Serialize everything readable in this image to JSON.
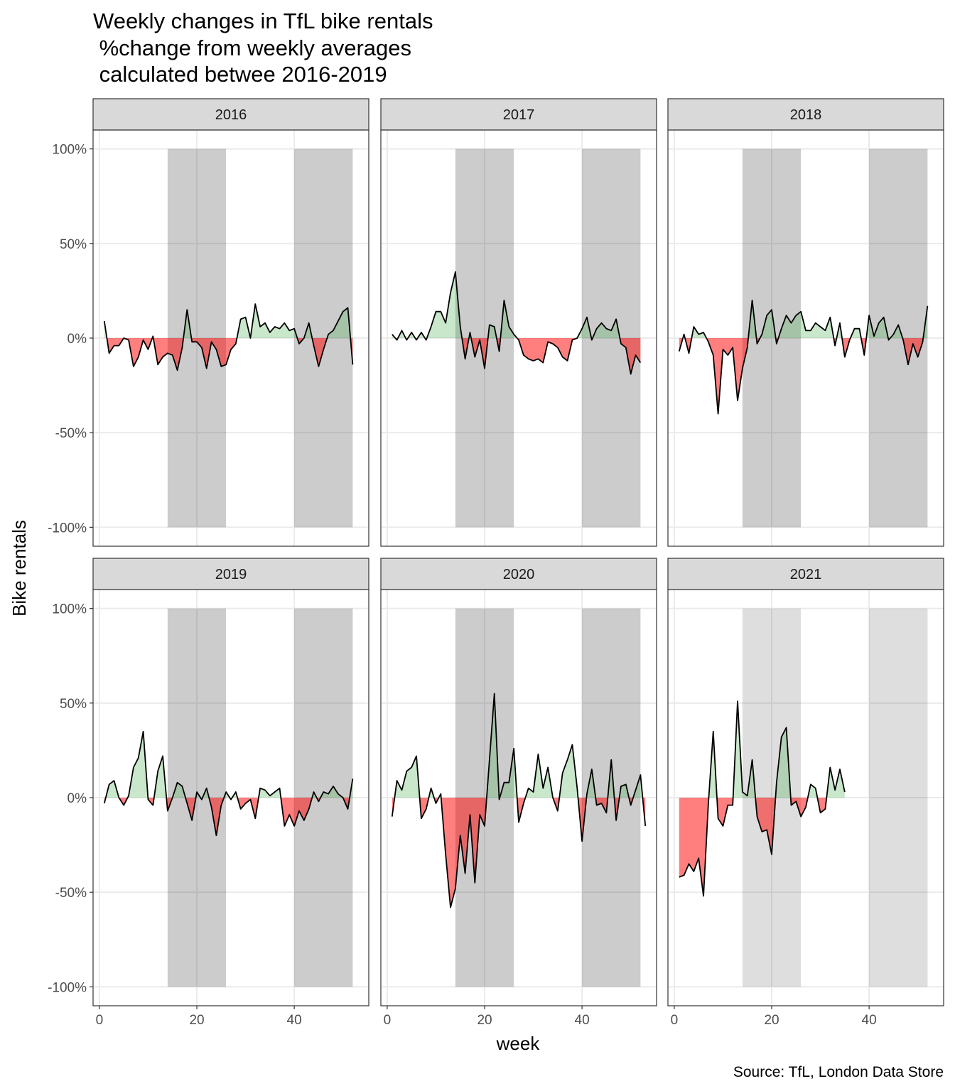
{
  "title_lines": [
    "Weekly changes in TfL bike rentals",
    " %change from weekly averages",
    " calculated betwee 2016-2019"
  ],
  "x_label": "week",
  "y_label": "Bike rentals",
  "caption": "Source: TfL, London Data Store",
  "chart_data": [
    {
      "type": "area",
      "strip": "2016",
      "x": [
        1,
        2,
        3,
        4,
        5,
        6,
        7,
        8,
        9,
        10,
        11,
        12,
        13,
        14,
        15,
        16,
        17,
        18,
        19,
        20,
        21,
        22,
        23,
        24,
        25,
        26,
        27,
        28,
        29,
        30,
        31,
        32,
        33,
        34,
        35,
        36,
        37,
        38,
        39,
        40,
        41,
        42,
        43,
        44,
        45,
        46,
        47,
        48,
        49,
        50,
        51,
        52
      ],
      "values": [
        9,
        -8,
        -4,
        -4,
        0,
        -1,
        -15,
        -10,
        -1,
        -6,
        1,
        -14,
        -10,
        -8,
        -9,
        -17,
        -5,
        15,
        -2,
        -2,
        -5,
        -16,
        -2,
        -6,
        -15,
        -14,
        -6,
        -3,
        10,
        11,
        0,
        18,
        6,
        8,
        3,
        6,
        5,
        8,
        4,
        5,
        -3,
        0,
        8,
        -4,
        -15,
        -6,
        2,
        4,
        9,
        14,
        16,
        -14
      ],
      "xlim": [
        -1.3,
        55.3
      ],
      "ylim": [
        -110,
        110
      ],
      "xticks": [
        0,
        20,
        40
      ],
      "yticks": [
        {
          "value": -100,
          "label": "-100%"
        },
        {
          "value": -50,
          "label": "-50%"
        },
        {
          "value": 0,
          "label": "0%"
        },
        {
          "value": 50,
          "label": "50%"
        },
        {
          "value": 100,
          "label": "100%"
        }
      ],
      "shaded_periods": [
        [
          14,
          26,
          -100,
          100
        ],
        [
          40,
          52,
          -100,
          100
        ]
      ],
      "shade_color": "rgba(0,0,0,0.2)",
      "positive_color": "rgba(76,175,80,0.3)",
      "negative_color": "rgba(255,0,0,0.5)",
      "line_color": "#000000",
      "grid": true
    },
    {
      "type": "area",
      "strip": "2017",
      "x": [
        1,
        2,
        3,
        4,
        5,
        6,
        7,
        8,
        9,
        10,
        11,
        12,
        13,
        14,
        15,
        16,
        17,
        18,
        19,
        20,
        21,
        22,
        23,
        24,
        25,
        26,
        27,
        28,
        29,
        30,
        31,
        32,
        33,
        34,
        35,
        36,
        37,
        38,
        39,
        40,
        41,
        42,
        43,
        44,
        45,
        46,
        47,
        48,
        49,
        50,
        51,
        52
      ],
      "values": [
        2,
        -1,
        4,
        -1,
        3,
        -1,
        3,
        -1,
        6,
        14,
        14,
        8,
        24,
        35,
        6,
        -11,
        3,
        -10,
        -1,
        -16,
        7,
        6,
        -7,
        20,
        6,
        2,
        -1,
        -9,
        -11,
        -12,
        -11,
        -13,
        -2,
        -3,
        -5,
        -10,
        -12,
        -1,
        0,
        5,
        11,
        -1,
        5,
        8,
        5,
        4,
        10,
        -3,
        -5,
        -19,
        -9,
        -13
      ],
      "xlim": [
        -1.3,
        55.3
      ],
      "ylim": [
        -110,
        110
      ],
      "xticks": [
        0,
        20,
        40
      ],
      "yticks": [
        {
          "value": -100,
          "label": "-100%"
        },
        {
          "value": -50,
          "label": "-50%"
        },
        {
          "value": 0,
          "label": "0%"
        },
        {
          "value": 50,
          "label": "50%"
        },
        {
          "value": 100,
          "label": "100%"
        }
      ],
      "shaded_periods": [
        [
          14,
          26,
          -100,
          100
        ],
        [
          40,
          52,
          -100,
          100
        ]
      ],
      "shade_color": "rgba(0,0,0,0.2)",
      "positive_color": "rgba(76,175,80,0.3)",
      "negative_color": "rgba(255,0,0,0.5)",
      "line_color": "#000000",
      "grid": true
    },
    {
      "type": "area",
      "strip": "2018",
      "x": [
        1,
        2,
        3,
        4,
        5,
        6,
        7,
        8,
        9,
        10,
        11,
        12,
        13,
        14,
        15,
        16,
        17,
        18,
        19,
        20,
        21,
        22,
        23,
        24,
        25,
        26,
        27,
        28,
        29,
        30,
        31,
        32,
        33,
        34,
        35,
        36,
        37,
        38,
        39,
        40,
        41,
        42,
        43,
        44,
        45,
        46,
        47,
        48,
        49,
        50,
        51,
        52
      ],
      "values": [
        -7,
        2,
        -8,
        6,
        2,
        3,
        -2,
        -9,
        -40,
        -6,
        -9,
        -5,
        -33,
        -16,
        -5,
        20,
        -3,
        2,
        12,
        15,
        -3,
        5,
        12,
        8,
        12,
        14,
        4,
        4,
        8,
        6,
        4,
        11,
        -4,
        8,
        -10,
        -1,
        5,
        5,
        -9,
        12,
        1,
        8,
        11,
        -1,
        2,
        7,
        -1,
        -14,
        -3,
        -10,
        -2,
        17
      ],
      "xlim": [
        -1.3,
        55.3
      ],
      "ylim": [
        -110,
        110
      ],
      "xticks": [
        0,
        20,
        40
      ],
      "yticks": [
        {
          "value": -100,
          "label": "-100%"
        },
        {
          "value": -50,
          "label": "-50%"
        },
        {
          "value": 0,
          "label": "0%"
        },
        {
          "value": 50,
          "label": "50%"
        },
        {
          "value": 100,
          "label": "100%"
        }
      ],
      "shaded_periods": [
        [
          14,
          26,
          -100,
          100
        ],
        [
          40,
          52,
          -100,
          100
        ]
      ],
      "shade_color": "rgba(0,0,0,0.2)",
      "positive_color": "rgba(76,175,80,0.3)",
      "negative_color": "rgba(255,0,0,0.5)",
      "line_color": "#000000",
      "grid": true
    },
    {
      "type": "area",
      "strip": "2019",
      "x": [
        1,
        2,
        3,
        4,
        5,
        6,
        7,
        8,
        9,
        10,
        11,
        12,
        13,
        14,
        15,
        16,
        17,
        18,
        19,
        20,
        21,
        22,
        23,
        24,
        25,
        26,
        27,
        28,
        29,
        30,
        31,
        32,
        33,
        34,
        35,
        36,
        37,
        38,
        39,
        40,
        41,
        42,
        43,
        44,
        45,
        46,
        47,
        48,
        49,
        50,
        51,
        52
      ],
      "values": [
        -3,
        7,
        9,
        0,
        -4,
        1,
        16,
        21,
        35,
        -1,
        -4,
        14,
        22,
        -7,
        0,
        8,
        6,
        -3,
        -12,
        3,
        -1,
        5,
        -5,
        -20,
        -4,
        3,
        -1,
        3,
        -6,
        -3,
        -1,
        -11,
        5,
        4,
        1,
        3,
        5,
        -15,
        -9,
        -15,
        -7,
        -12,
        -6,
        3,
        -2,
        3,
        2,
        6,
        2,
        0,
        -6,
        10
      ],
      "xlim": [
        -1.3,
        55.3
      ],
      "ylim": [
        -110,
        110
      ],
      "xticks": [
        0,
        20,
        40
      ],
      "yticks": [
        {
          "value": -100,
          "label": "-100%"
        },
        {
          "value": -50,
          "label": "-50%"
        },
        {
          "value": 0,
          "label": "0%"
        },
        {
          "value": 50,
          "label": "50%"
        },
        {
          "value": 100,
          "label": "100%"
        }
      ],
      "shaded_periods": [
        [
          14,
          26,
          -100,
          100
        ],
        [
          40,
          52,
          -100,
          100
        ]
      ],
      "shade_color": "rgba(0,0,0,0.2)",
      "positive_color": "rgba(76,175,80,0.3)",
      "negative_color": "rgba(255,0,0,0.5)",
      "line_color": "#000000",
      "grid": true
    },
    {
      "type": "area",
      "strip": "2020",
      "x": [
        1,
        2,
        3,
        4,
        5,
        6,
        7,
        8,
        9,
        10,
        11,
        12,
        13,
        14,
        15,
        16,
        17,
        18,
        19,
        20,
        21,
        22,
        23,
        24,
        25,
        26,
        27,
        28,
        29,
        30,
        31,
        32,
        33,
        34,
        35,
        36,
        37,
        38,
        39,
        40,
        41,
        42,
        43,
        44,
        45,
        46,
        47,
        48,
        49,
        50,
        51,
        52,
        53
      ],
      "values": [
        -10,
        9,
        4,
        14,
        16,
        22,
        -11,
        -6,
        5,
        -3,
        2,
        -30,
        -58,
        -48,
        -20,
        -40,
        -9,
        -45,
        -9,
        -15,
        20,
        55,
        -1,
        8,
        8,
        26,
        -13,
        -3,
        5,
        3,
        23,
        5,
        16,
        0,
        -7,
        13,
        20,
        28,
        5,
        -23,
        2,
        15,
        -4,
        -3,
        -8,
        20,
        -12,
        6,
        7,
        -4,
        4,
        12,
        -15
      ],
      "xlim": [
        -1.3,
        55.3
      ],
      "ylim": [
        -110,
        110
      ],
      "xticks": [
        0,
        20,
        40
      ],
      "yticks": [
        {
          "value": -100,
          "label": "-100%"
        },
        {
          "value": -50,
          "label": "-50%"
        },
        {
          "value": 0,
          "label": "0%"
        },
        {
          "value": 50,
          "label": "50%"
        },
        {
          "value": 100,
          "label": "100%"
        }
      ],
      "shaded_periods": [
        [
          14,
          26,
          -100,
          100
        ],
        [
          40,
          52,
          -100,
          100
        ]
      ],
      "shade_color": "rgba(0,0,0,0.2)",
      "positive_color": "rgba(76,175,80,0.3)",
      "negative_color": "rgba(255,0,0,0.5)",
      "line_color": "#000000",
      "grid": true
    },
    {
      "type": "area",
      "strip": "2021",
      "x": [
        1,
        2,
        3,
        4,
        5,
        6,
        7,
        8,
        9,
        10,
        11,
        12,
        13,
        14,
        15,
        16,
        17,
        18,
        19,
        20,
        21,
        22,
        23,
        24,
        25,
        26,
        27,
        28,
        29,
        30,
        31,
        32,
        33,
        34,
        35
      ],
      "values": [
        -42,
        -41,
        -35,
        -39,
        -32,
        -52,
        -3,
        35,
        -11,
        -15,
        -4,
        -4,
        51,
        3,
        1,
        20,
        -10,
        -18,
        -17,
        -30,
        8,
        32,
        37,
        -4,
        -2,
        -10,
        -5,
        7,
        5,
        -8,
        -6,
        16,
        4,
        15,
        3
      ],
      "xlim": [
        -1.3,
        55.3
      ],
      "ylim": [
        -110,
        110
      ],
      "xticks": [
        0,
        20,
        40
      ],
      "yticks": [
        {
          "value": -100,
          "label": "-100%"
        },
        {
          "value": -50,
          "label": "-50%"
        },
        {
          "value": 0,
          "label": "0%"
        },
        {
          "value": 50,
          "label": "50%"
        },
        {
          "value": 100,
          "label": "100%"
        }
      ],
      "shaded_periods": [
        [
          14,
          26,
          -100,
          100
        ],
        [
          40,
          52,
          -100,
          100
        ]
      ],
      "shade_color": "rgba(0,0,0,0.13)",
      "positive_color": "rgba(76,175,80,0.3)",
      "negative_color": "rgba(255,0,0,0.5)",
      "line_color": "#000000",
      "grid": true
    }
  ]
}
